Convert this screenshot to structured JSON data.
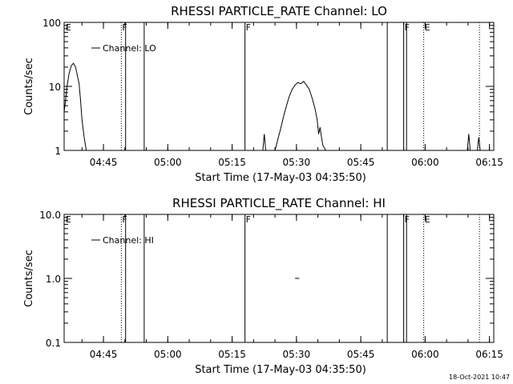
{
  "chart_data": [
    {
      "type": "line",
      "title": "RHESSI PARTICLE_RATE Channel: LO",
      "xlabel": "Start Time (17-May-03 04:35:50)",
      "ylabel": "Counts/sec",
      "yscale": "log",
      "ylim": [
        1,
        100
      ],
      "xlim": [
        "04:35:50",
        "06:16:00"
      ],
      "x_ticks": [
        "04:45",
        "05:00",
        "05:15",
        "05:30",
        "05:45",
        "06:00",
        "06:15"
      ],
      "y_ticks": [
        "1",
        "10",
        "100"
      ],
      "legend": {
        "entries": [
          "Channel: LO"
        ],
        "placement": "top-left"
      },
      "events": [
        {
          "time": "04:36:00",
          "label": "E",
          "style": "none"
        },
        {
          "time": "04:49:10",
          "label": "F",
          "style": "dotted"
        },
        {
          "time": "04:50:10",
          "label": "",
          "style": "solid"
        },
        {
          "time": "04:54:30",
          "label": "",
          "style": "solid"
        },
        {
          "time": "05:18:00",
          "label": "F",
          "style": "solid"
        },
        {
          "time": "05:51:10",
          "label": "",
          "style": "solid"
        },
        {
          "time": "05:55:00",
          "label": "F",
          "style": "solid"
        },
        {
          "time": "05:55:40",
          "label": "",
          "style": "solid"
        },
        {
          "time": "05:59:40",
          "label": "E",
          "style": "dotted"
        },
        {
          "time": "06:12:40",
          "label": "",
          "style": "dotted"
        }
      ],
      "series": [
        {
          "name": "Channel: LO",
          "segments": [
            [
              [
                "04:35:50",
                4.0
              ],
              [
                "04:36:10",
                6.0
              ],
              [
                "04:36:30",
                10.0
              ],
              [
                "04:37:00",
                16.0
              ],
              [
                "04:37:30",
                21.0
              ],
              [
                "04:38:00",
                23.0
              ],
              [
                "04:38:30",
                20.0
              ],
              [
                "04:39:00",
                14.0
              ],
              [
                "04:39:20",
                11.0
              ],
              [
                "04:39:40",
                6.0
              ],
              [
                "04:40:00",
                3.0
              ],
              [
                "04:40:30",
                1.6
              ],
              [
                "04:41:00",
                1.0
              ]
            ],
            [
              [
                "05:22:10",
                1.0
              ],
              [
                "05:22:30",
                1.8
              ],
              [
                "05:22:50",
                1.0
              ]
            ],
            [
              [
                "05:25:00",
                1.0
              ],
              [
                "05:25:40",
                1.5
              ],
              [
                "05:26:20",
                2.2
              ],
              [
                "05:27:00",
                3.4
              ],
              [
                "05:27:40",
                5.0
              ],
              [
                "05:28:20",
                7.0
              ],
              [
                "05:29:00",
                9.0
              ],
              [
                "05:29:40",
                10.5
              ],
              [
                "05:30:20",
                11.5
              ],
              [
                "05:31:00",
                11.0
              ],
              [
                "05:31:40",
                12.0
              ],
              [
                "05:32:20",
                10.5
              ],
              [
                "05:33:00",
                9.0
              ],
              [
                "05:33:40",
                6.5
              ],
              [
                "05:34:20",
                4.5
              ],
              [
                "05:34:50",
                3.0
              ],
              [
                "05:35:10",
                1.8
              ],
              [
                "05:35:30",
                2.3
              ],
              [
                "05:35:50",
                1.6
              ],
              [
                "05:36:10",
                1.2
              ],
              [
                "05:36:50",
                1.0
              ]
            ],
            [
              [
                "06:09:50",
                1.0
              ],
              [
                "06:10:10",
                1.8
              ],
              [
                "06:10:30",
                1.0
              ]
            ],
            [
              [
                "06:12:10",
                1.0
              ],
              [
                "06:12:30",
                1.6
              ],
              [
                "06:12:50",
                1.0
              ]
            ]
          ]
        }
      ]
    },
    {
      "type": "line",
      "title": "RHESSI PARTICLE_RATE Channel: HI",
      "xlabel": "Start Time (17-May-03 04:35:50)",
      "ylabel": "Counts/sec",
      "yscale": "log",
      "ylim": [
        0.1,
        10
      ],
      "xlim": [
        "04:35:50",
        "06:16:00"
      ],
      "x_ticks": [
        "04:45",
        "05:00",
        "05:15",
        "05:30",
        "05:45",
        "06:00",
        "06:15"
      ],
      "y_ticks": [
        "0.1",
        "1.0",
        "10.0"
      ],
      "legend": {
        "entries": [
          "Channel: HI"
        ],
        "placement": "top-left"
      },
      "events": [
        {
          "time": "04:36:00",
          "label": "E",
          "style": "none"
        },
        {
          "time": "04:49:10",
          "label": "F",
          "style": "dotted"
        },
        {
          "time": "04:50:10",
          "label": "",
          "style": "solid"
        },
        {
          "time": "04:54:30",
          "label": "",
          "style": "solid"
        },
        {
          "time": "05:18:00",
          "label": "F",
          "style": "solid"
        },
        {
          "time": "05:51:10",
          "label": "",
          "style": "solid"
        },
        {
          "time": "05:55:00",
          "label": "F",
          "style": "solid"
        },
        {
          "time": "05:55:40",
          "label": "",
          "style": "solid"
        },
        {
          "time": "05:59:40",
          "label": "E",
          "style": "dotted"
        },
        {
          "time": "06:12:40",
          "label": "",
          "style": "dotted"
        }
      ],
      "series": [
        {
          "name": "Channel: HI",
          "segments": [
            [
              [
                "05:29:40",
                1.0
              ],
              [
                "05:30:40",
                1.0
              ]
            ]
          ]
        }
      ]
    }
  ],
  "timestamp": "18-Oct-2021 10:47"
}
